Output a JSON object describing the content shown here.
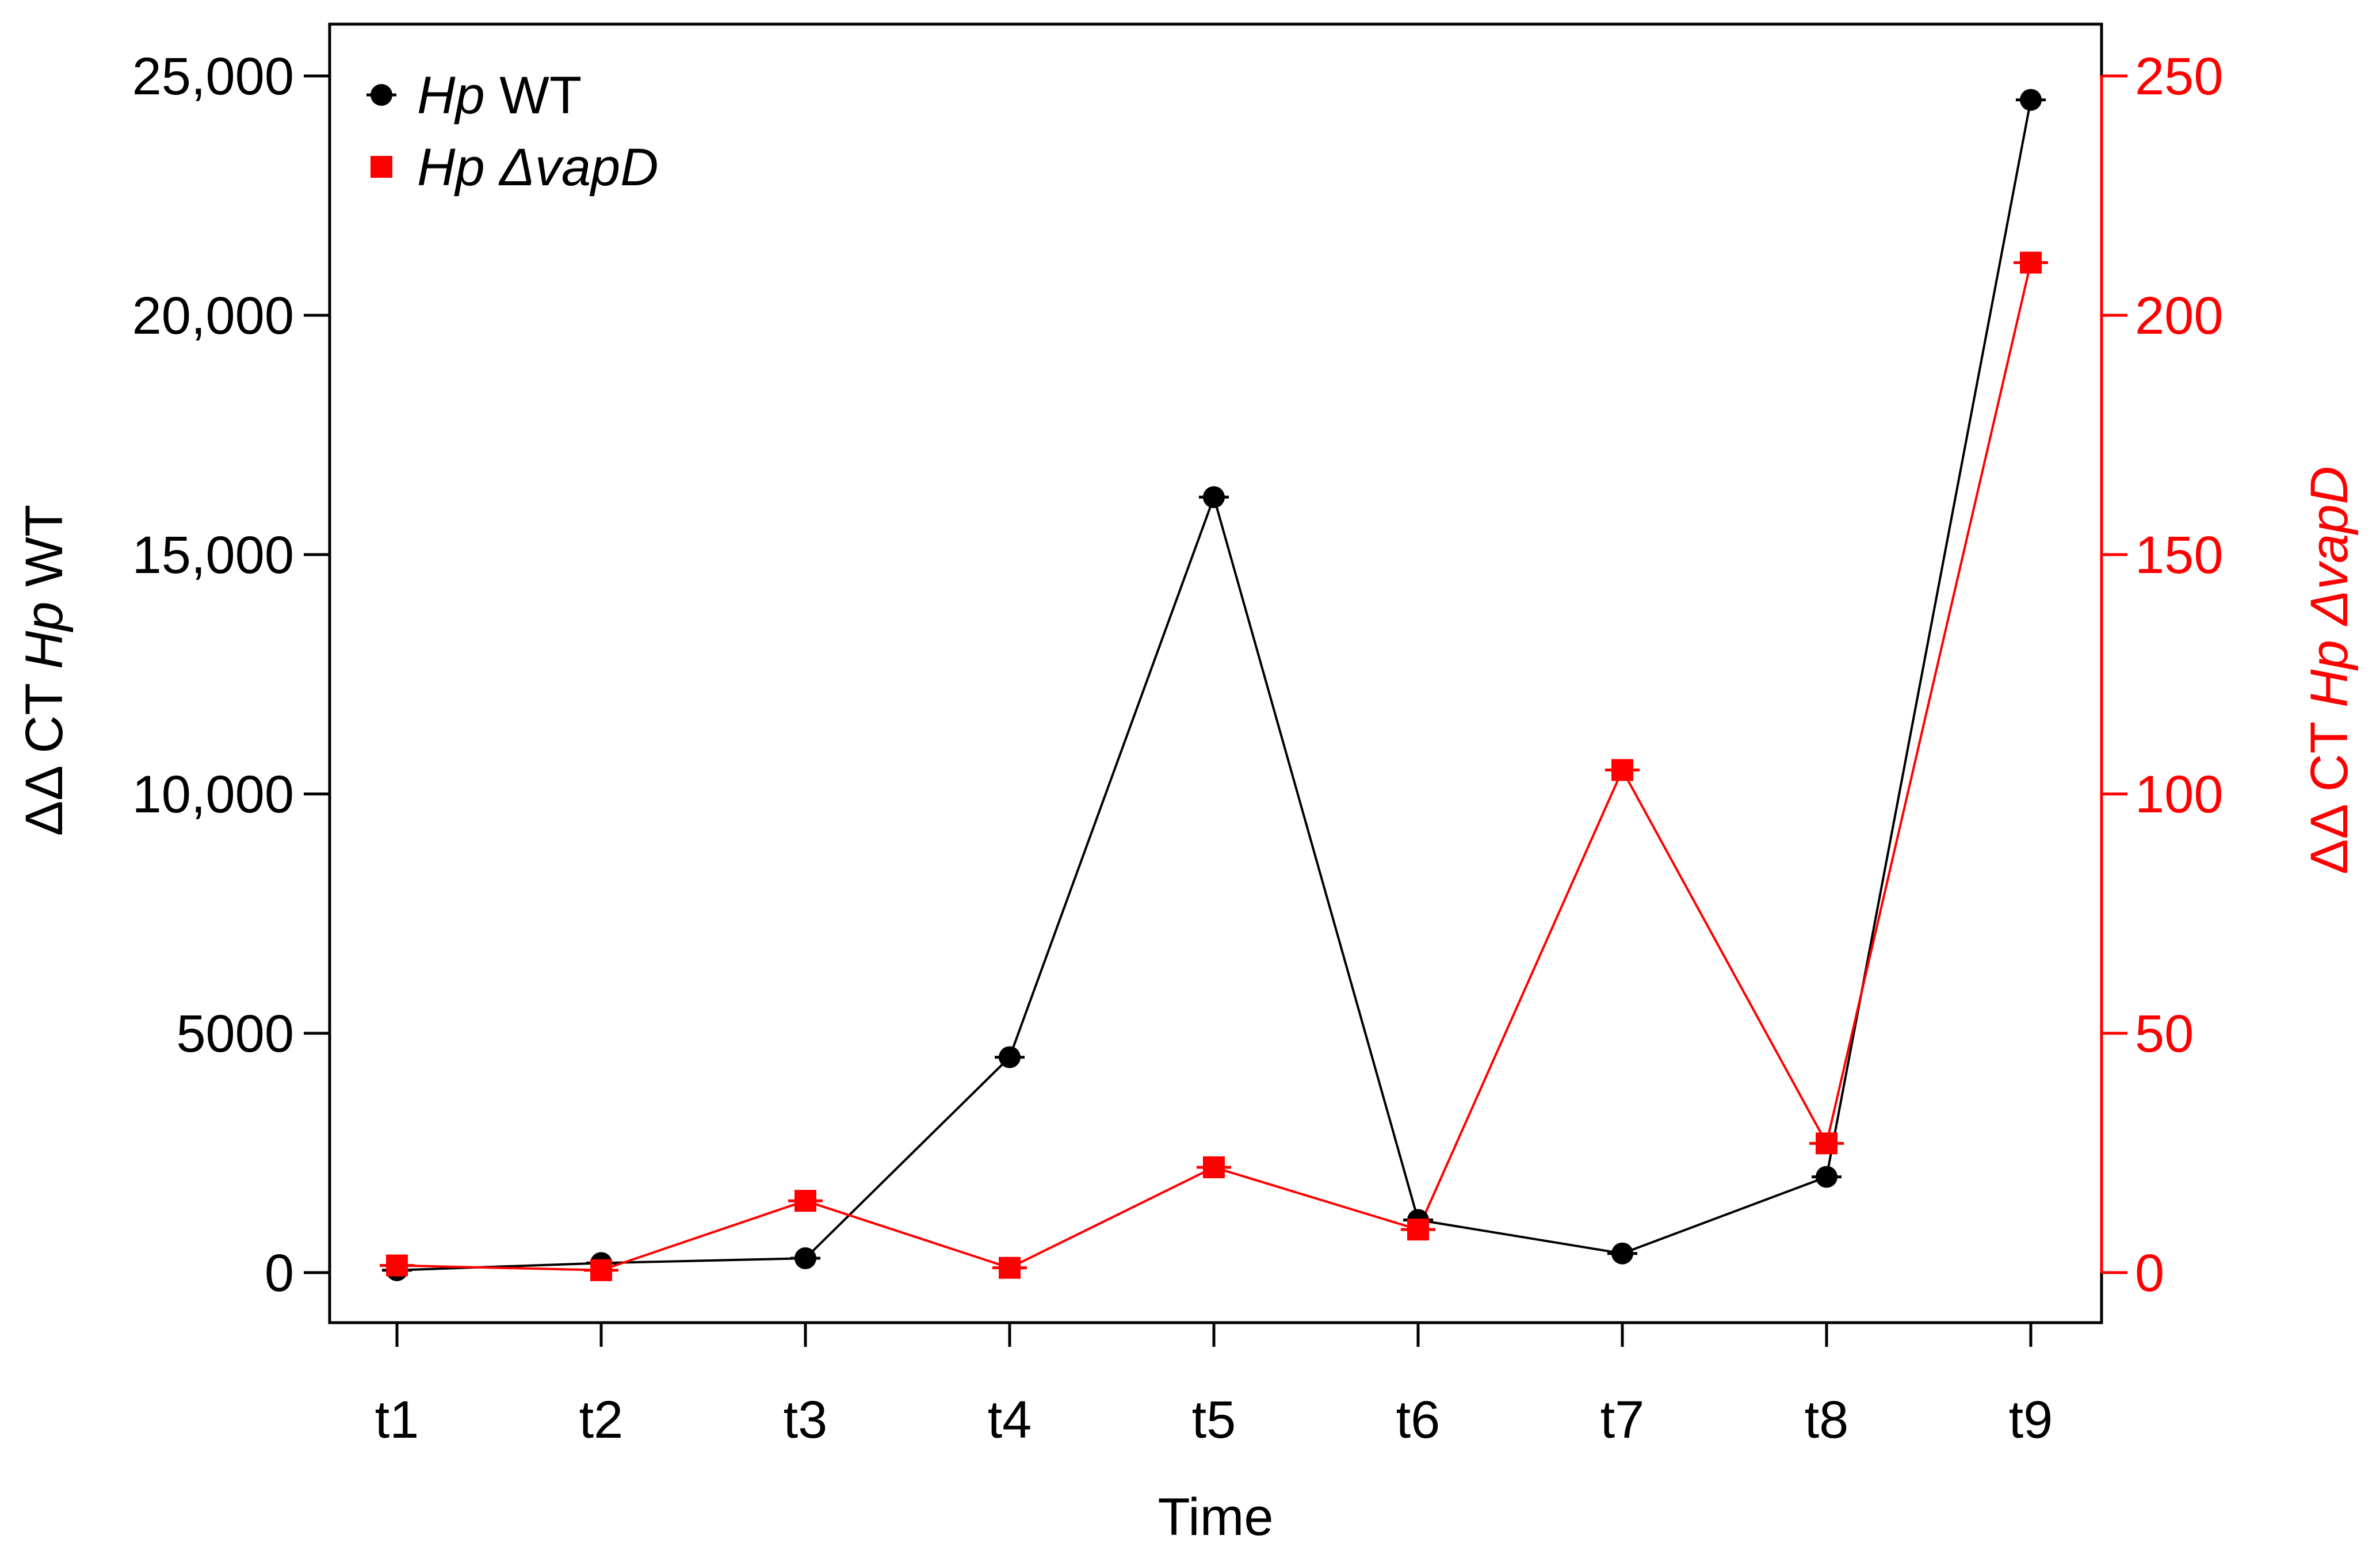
{
  "chart_data": {
    "type": "line",
    "xlabel": "Time",
    "categories": [
      "t1",
      "t2",
      "t3",
      "t4",
      "t5",
      "t6",
      "t7",
      "t8",
      "t9"
    ],
    "ylabel_left": {
      "prefix": "ΔΔ CT ",
      "italic": "Hp",
      "suffix": " WT"
    },
    "ylabel_right": {
      "prefix": "ΔΔ CT ",
      "italic": "Hp ΔvapD",
      "suffix": ""
    },
    "yticks_left": [
      {
        "value": 0,
        "label": "0"
      },
      {
        "value": 5000,
        "label": "5000"
      },
      {
        "value": 10000,
        "label": "10,000"
      },
      {
        "value": 15000,
        "label": "15,000"
      },
      {
        "value": 20000,
        "label": "20,000"
      },
      {
        "value": 25000,
        "label": "25,000"
      }
    ],
    "yticks_right": [
      {
        "value": 0,
        "label": "0"
      },
      {
        "value": 50,
        "label": "50"
      },
      {
        "value": 100,
        "label": "100"
      },
      {
        "value": 150,
        "label": "150"
      },
      {
        "value": 200,
        "label": "200"
      },
      {
        "value": 250,
        "label": "250"
      }
    ],
    "ylim_left": [
      -1000,
      26000
    ],
    "ylim_right": [
      -10,
      260
    ],
    "series": [
      {
        "name": "Hp WT",
        "legend_italic": "Hp",
        "legend_rest": " WT",
        "axis": "left",
        "color": "#000000",
        "marker": "circle",
        "values": [
          50,
          200,
          300,
          4500,
          16200,
          1100,
          400,
          2000,
          24500
        ]
      },
      {
        "name": "Hp ΔvapD",
        "legend_italic": "Hp ΔvapD",
        "legend_rest": "",
        "axis": "right",
        "color": "#ff0000",
        "marker": "square",
        "values": [
          1.5,
          0.5,
          15,
          1,
          22,
          9,
          105,
          27,
          211
        ]
      }
    ],
    "legend_position": "top-left",
    "grid": false
  }
}
